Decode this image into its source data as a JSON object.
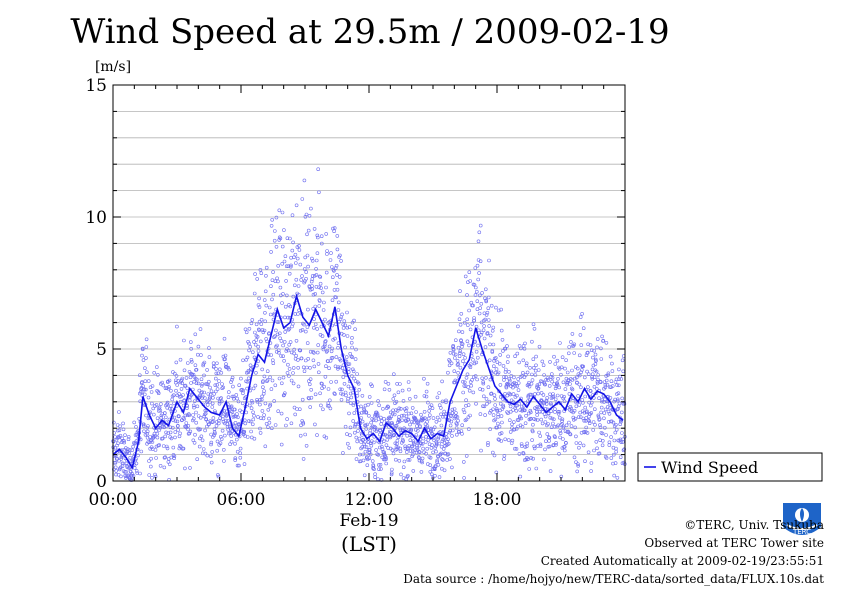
{
  "chart_data": {
    "type": "line",
    "title": "Wind Speed at 29.5m / 2009-02-19",
    "ylabel": "[m/s]",
    "xlabel": "(LST)",
    "date_label": "Feb-19",
    "ylim": [
      0,
      15
    ],
    "yticks": [
      0,
      5,
      10,
      15
    ],
    "xlim_hours": [
      0,
      24
    ],
    "xticks": [
      {
        "hour": 0,
        "label": "00:00"
      },
      {
        "hour": 6,
        "label": "06:00"
      },
      {
        "hour": 12,
        "label": "12:00"
      },
      {
        "hour": 18,
        "label": "18:00"
      }
    ],
    "grid": true,
    "legend_position": "right",
    "series": [
      {
        "name": "Wind Speed",
        "color": "#1414e6",
        "scatter_color": "#7070f0",
        "x": [
          0.0,
          0.3,
          0.6,
          0.9,
          1.2,
          1.4,
          1.7,
          2.0,
          2.3,
          2.6,
          3.0,
          3.3,
          3.6,
          4.0,
          4.3,
          4.6,
          5.0,
          5.3,
          5.6,
          5.9,
          6.2,
          6.5,
          6.8,
          7.1,
          7.4,
          7.7,
          8.0,
          8.3,
          8.6,
          8.9,
          9.2,
          9.5,
          9.8,
          10.1,
          10.4,
          10.7,
          11.0,
          11.3,
          11.6,
          11.9,
          12.2,
          12.5,
          12.8,
          13.1,
          13.4,
          13.7,
          14.0,
          14.3,
          14.6,
          14.9,
          15.2,
          15.5,
          15.8,
          16.1,
          16.4,
          16.7,
          17.0,
          17.3,
          17.6,
          17.9,
          18.2,
          18.5,
          18.8,
          19.1,
          19.4,
          19.7,
          20.0,
          20.3,
          20.6,
          20.9,
          21.2,
          21.5,
          21.8,
          22.1,
          22.4,
          22.7,
          23.0,
          23.3,
          23.6,
          23.9
        ],
        "y": [
          1.0,
          1.2,
          0.9,
          0.5,
          1.5,
          3.2,
          2.5,
          2.0,
          2.3,
          2.1,
          3.0,
          2.6,
          3.5,
          3.1,
          2.8,
          2.6,
          2.5,
          3.0,
          2.0,
          1.7,
          2.8,
          4.0,
          4.8,
          4.5,
          5.5,
          6.5,
          5.8,
          6.0,
          7.0,
          6.2,
          5.9,
          6.5,
          6.0,
          5.5,
          6.6,
          5.0,
          4.0,
          3.5,
          2.0,
          1.6,
          1.8,
          1.5,
          2.2,
          2.0,
          1.7,
          1.9,
          1.8,
          1.5,
          2.0,
          1.6,
          1.8,
          1.7,
          3.0,
          3.6,
          4.2,
          4.6,
          5.8,
          5.0,
          4.3,
          3.6,
          3.3,
          3.0,
          2.9,
          3.1,
          2.8,
          3.2,
          2.9,
          2.6,
          2.8,
          3.0,
          2.7,
          3.3,
          3.0,
          3.5,
          3.1,
          3.4,
          3.3,
          3.0,
          2.5,
          2.3
        ]
      }
    ]
  },
  "footer": {
    "copyright": "©TERC, Univ. Tsukuba",
    "observed": "Observed at TERC Tower site",
    "created": "Created Automatically at 2009-02-19/23:55:51",
    "source": "Data source : /home/hojyo/new/TERC-data/sorted_data/FLUX.10s.dat",
    "logo_text": "TERC"
  }
}
